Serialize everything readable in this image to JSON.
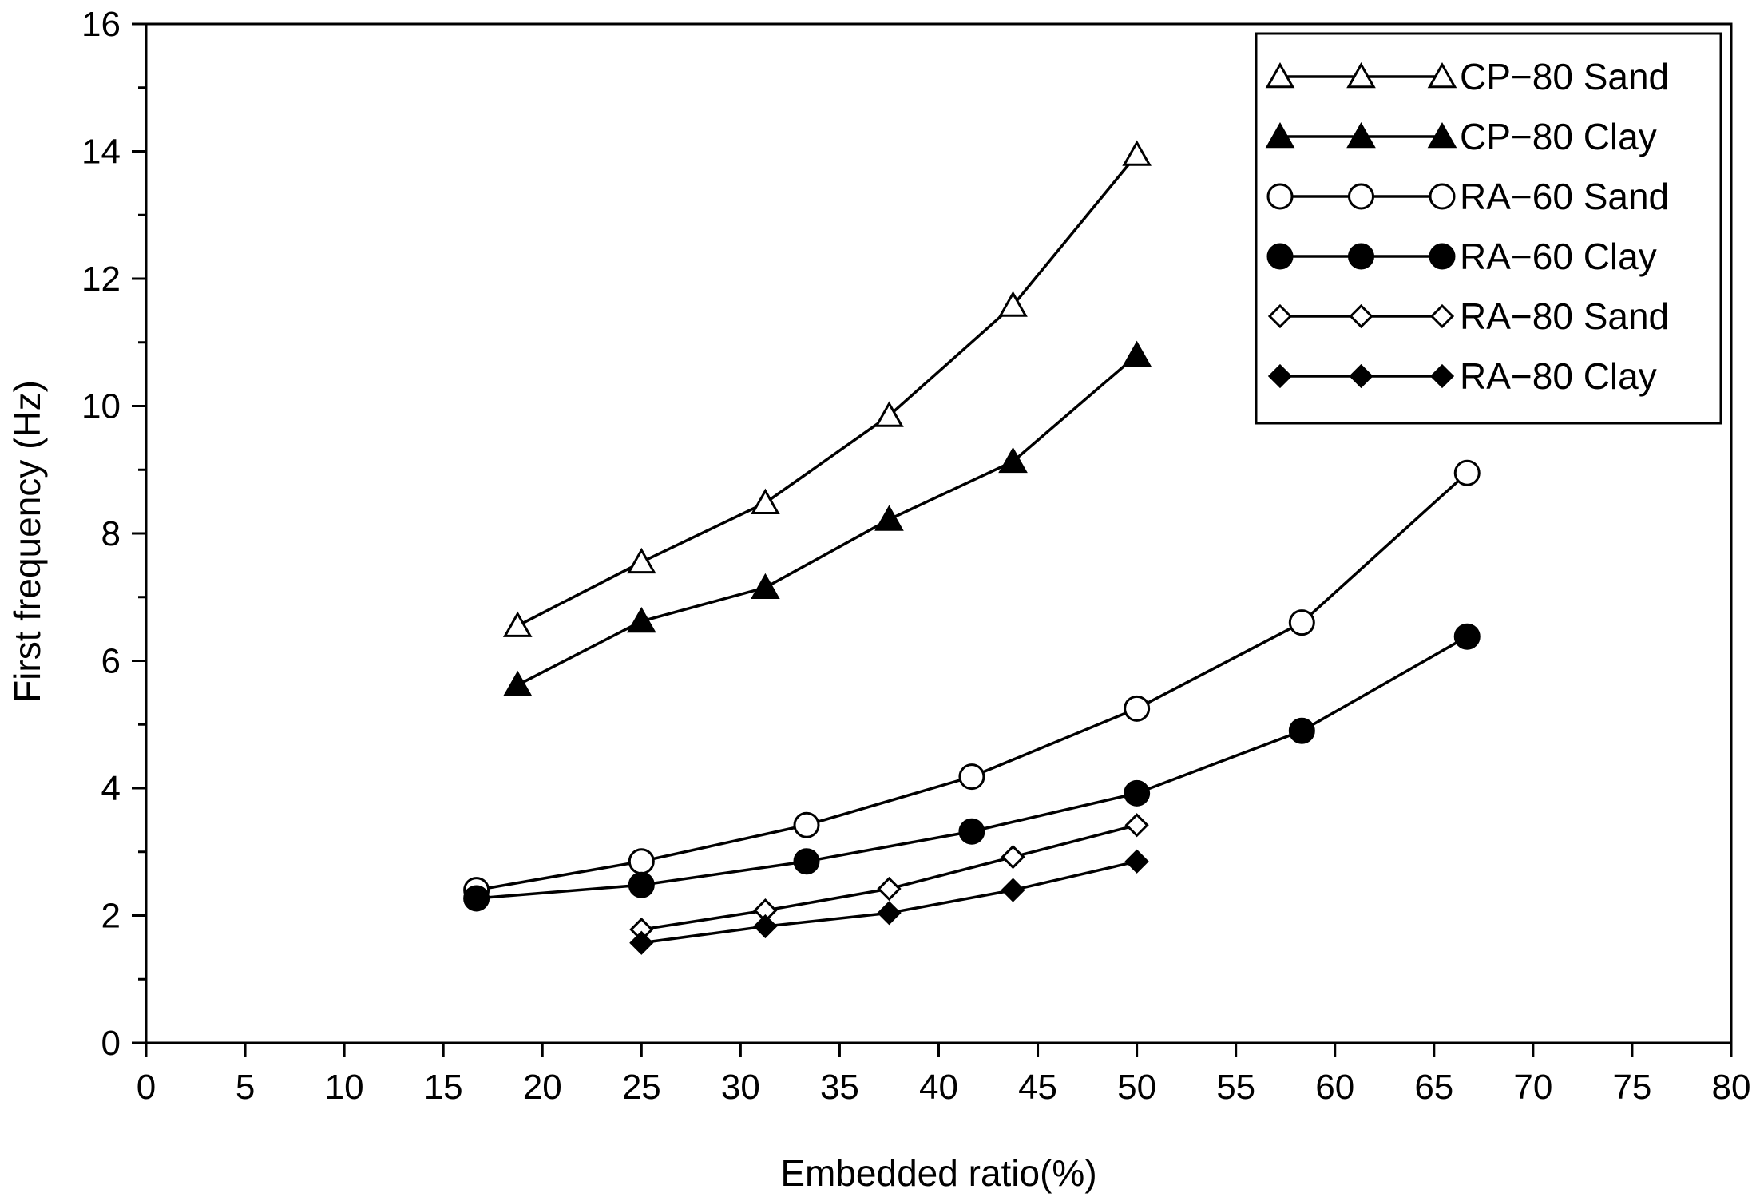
{
  "chart_data": {
    "type": "line",
    "title": "",
    "xlabel": "Embedded ratio(%)",
    "ylabel": "First frequency (Hz)",
    "xlim": [
      0,
      80
    ],
    "ylim": [
      0,
      16
    ],
    "x_major_step": 5,
    "y_major_step": 2,
    "grid": false,
    "legend_position": "top-right",
    "series": [
      {
        "name": "CP−80 Sand",
        "marker": "triangle-open",
        "x": [
          18.75,
          25.0,
          31.25,
          37.5,
          43.75,
          50.0
        ],
        "y": [
          6.55,
          7.55,
          8.48,
          9.85,
          11.58,
          13.95
        ]
      },
      {
        "name": "CP−80 Clay",
        "marker": "triangle-filled",
        "x": [
          18.75,
          25.0,
          31.25,
          37.5,
          43.75,
          50.0
        ],
        "y": [
          5.62,
          6.62,
          7.15,
          8.22,
          9.13,
          10.8
        ]
      },
      {
        "name": "RA−60 Sand",
        "marker": "circle-open",
        "x": [
          16.67,
          25.0,
          33.33,
          41.67,
          50.0,
          58.33,
          66.67
        ],
        "y": [
          2.4,
          2.85,
          3.42,
          4.18,
          5.25,
          6.6,
          8.95
        ]
      },
      {
        "name": "RA−60 Clay",
        "marker": "circle-filled",
        "x": [
          16.67,
          25.0,
          33.33,
          41.67,
          50.0,
          58.33,
          66.67
        ],
        "y": [
          2.27,
          2.48,
          2.85,
          3.32,
          3.92,
          4.9,
          6.38
        ]
      },
      {
        "name": "RA−80 Sand",
        "marker": "diamond-open",
        "x": [
          25.0,
          31.25,
          37.5,
          43.75,
          50.0
        ],
        "y": [
          1.78,
          2.08,
          2.42,
          2.92,
          3.42
        ]
      },
      {
        "name": "RA−80 Clay",
        "marker": "diamond-filled",
        "x": [
          25.0,
          31.25,
          37.5,
          43.75,
          50.0
        ],
        "y": [
          1.57,
          1.83,
          2.04,
          2.4,
          2.85
        ]
      }
    ]
  }
}
